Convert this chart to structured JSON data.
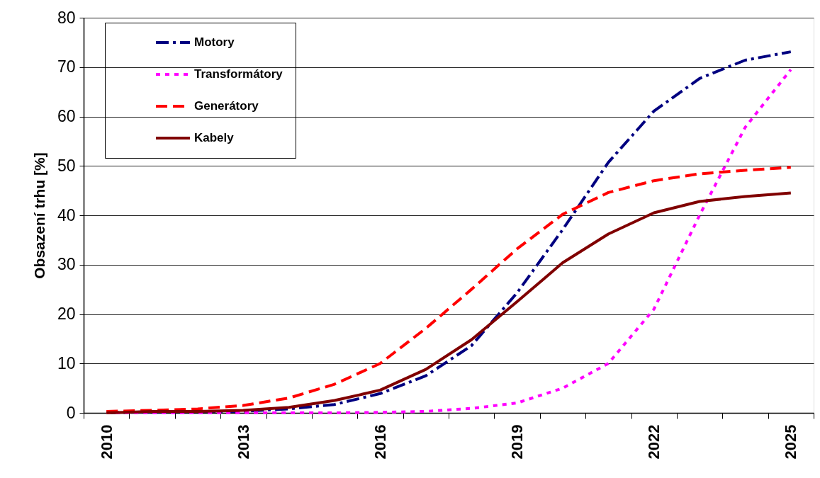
{
  "chart_data": {
    "type": "line",
    "ylabel": "Obsazení trhu [%]",
    "categories": [
      "2010",
      null,
      null,
      "2013",
      null,
      null,
      "2016",
      null,
      null,
      "2019",
      null,
      null,
      "2022",
      null,
      null,
      "2025"
    ],
    "series": [
      {
        "name": "Motory",
        "color": "#000080",
        "line_style": "dashdot",
        "values": [
          0,
          0.2,
          0.3,
          0.3,
          0.8,
          1.7,
          3.9,
          7.5,
          13.6,
          24.3,
          37.1,
          50.7,
          61.1,
          67.7,
          71.4,
          73.1
        ]
      },
      {
        "name": "Transformátory",
        "color": "#ff00ff",
        "line_style": "dotted",
        "values": [
          0,
          0,
          0,
          0,
          0,
          0,
          0.1,
          0.3,
          0.9,
          2.0,
          5.0,
          10.0,
          21.0,
          40.0,
          57.8,
          69.5
        ]
      },
      {
        "name": "Generátory",
        "color": "#ff0000",
        "line_style": "dashed",
        "values": [
          0.3,
          0.5,
          0.8,
          1.5,
          3.0,
          5.8,
          10.0,
          17.1,
          25.0,
          33.2,
          40.2,
          44.6,
          47.0,
          48.4,
          49.1,
          49.7
        ]
      },
      {
        "name": "Kabely",
        "color": "#800000",
        "line_style": "solid",
        "values": [
          0,
          0.3,
          0.3,
          0.5,
          1.1,
          2.5,
          4.6,
          8.8,
          14.8,
          22.5,
          30.4,
          36.2,
          40.5,
          42.8,
          43.8,
          44.5
        ]
      }
    ],
    "ylim": [
      0,
      80
    ],
    "yticks": [
      0,
      10,
      20,
      30,
      40,
      50,
      60,
      70,
      80
    ],
    "grid": "y",
    "legend": "top left"
  }
}
